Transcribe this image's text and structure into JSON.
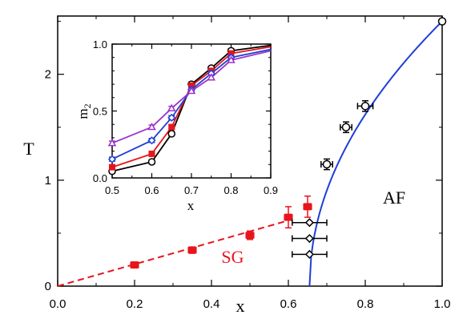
{
  "chart_data": [
    {
      "type": "scatter",
      "xlabel": "x",
      "ylabel": "T",
      "xlim": [
        0.0,
        1.0
      ],
      "ylim": [
        0,
        2.55
      ],
      "xticks": [
        "0.0",
        "0.2",
        "0.4",
        "0.6",
        "0.8",
        "1.0"
      ],
      "yticks": [
        "0",
        "1",
        "2"
      ],
      "xtick_values": [
        0.0,
        0.2,
        0.4,
        0.6,
        0.8,
        1.0
      ],
      "ytick_values": [
        0,
        1,
        2
      ],
      "grid": false,
      "annotations": [
        {
          "text": "AF",
          "x": 0.875,
          "y": 0.78,
          "color": "#000000"
        },
        {
          "text": "SG",
          "x": 0.455,
          "y": 0.22,
          "color": "#e8141c"
        }
      ],
      "series": [
        {
          "marker": "filled-square",
          "color": "#e8141c",
          "points": [
            {
              "x": 0.2,
              "y": 0.2,
              "xerr": 0.01,
              "yerr": 0.02
            },
            {
              "x": 0.35,
              "y": 0.34,
              "xerr": 0.01,
              "yerr": 0.03
            },
            {
              "x": 0.5,
              "y": 0.48,
              "xerr": 0.01,
              "yerr": 0.04
            },
            {
              "x": 0.6,
              "y": 0.65,
              "xerr": 0.01,
              "yerr": 0.1
            },
            {
              "x": 0.65,
              "y": 0.75,
              "xerr": 0.01,
              "yerr": 0.1
            }
          ]
        },
        {
          "marker": "open-circle",
          "color": "#000000",
          "points": [
            {
              "x": 0.7,
              "y": 1.15,
              "xerr": 0.015,
              "yerr": 0.05
            },
            {
              "x": 0.75,
              "y": 1.5,
              "xerr": 0.015,
              "yerr": 0.05
            },
            {
              "x": 0.8,
              "y": 1.7,
              "xerr": 0.02,
              "yerr": 0.05
            },
            {
              "x": 1.0,
              "y": 2.5,
              "xerr": 0.0,
              "yerr": 0.0
            }
          ]
        },
        {
          "marker": "open-diamond",
          "color": "#000000",
          "points": [
            {
              "x": 0.655,
              "y": 0.6,
              "xerr": 0.045,
              "yerr": 0
            },
            {
              "x": 0.655,
              "y": 0.45,
              "xerr": 0.045,
              "yerr": 0
            },
            {
              "x": 0.655,
              "y": 0.3,
              "xerr": 0.045,
              "yerr": 0
            }
          ]
        }
      ],
      "lines": [
        {
          "style": "dashed",
          "color": "#e8141c",
          "x": [
            0.0,
            0.6
          ],
          "y": [
            0.0,
            0.62
          ]
        },
        {
          "style": "solid",
          "color": "#1f3fd6",
          "x0": 0.655,
          "y_max_at_x1": 2.5,
          "x1": 1.0,
          "exponent": 0.5
        }
      ]
    },
    {
      "type": "line",
      "xlabel": "x",
      "ylabel": "m",
      "ylabel_sub": "2",
      "xlim": [
        0.5,
        0.9
      ],
      "ylim": [
        0.0,
        1.0
      ],
      "xticks": [
        "0.5",
        "0.6",
        "0.7",
        "0.8",
        "0.9"
      ],
      "yticks": [
        "0.0",
        "0.5",
        "1.0"
      ],
      "xtick_values": [
        0.5,
        0.6,
        0.7,
        0.8,
        0.9
      ],
      "ytick_values": [
        0.0,
        0.5,
        1.0
      ],
      "x": [
        0.5,
        0.6,
        0.65,
        0.7,
        0.75,
        0.8,
        0.9
      ],
      "series": [
        {
          "marker": "open-circle",
          "color": "#000000",
          "values": [
            0.05,
            0.12,
            0.33,
            0.7,
            0.82,
            0.95,
            0.99
          ]
        },
        {
          "marker": "filled-square",
          "color": "#e8141c",
          "values": [
            0.08,
            0.18,
            0.38,
            0.69,
            0.8,
            0.93,
            0.98
          ]
        },
        {
          "marker": "open-diamond",
          "color": "#1f3fd6",
          "values": [
            0.14,
            0.28,
            0.45,
            0.66,
            0.78,
            0.9,
            0.96
          ]
        },
        {
          "marker": "open-triangle",
          "color": "#9b32c8",
          "values": [
            0.26,
            0.38,
            0.52,
            0.65,
            0.75,
            0.88,
            0.95
          ]
        }
      ]
    }
  ]
}
